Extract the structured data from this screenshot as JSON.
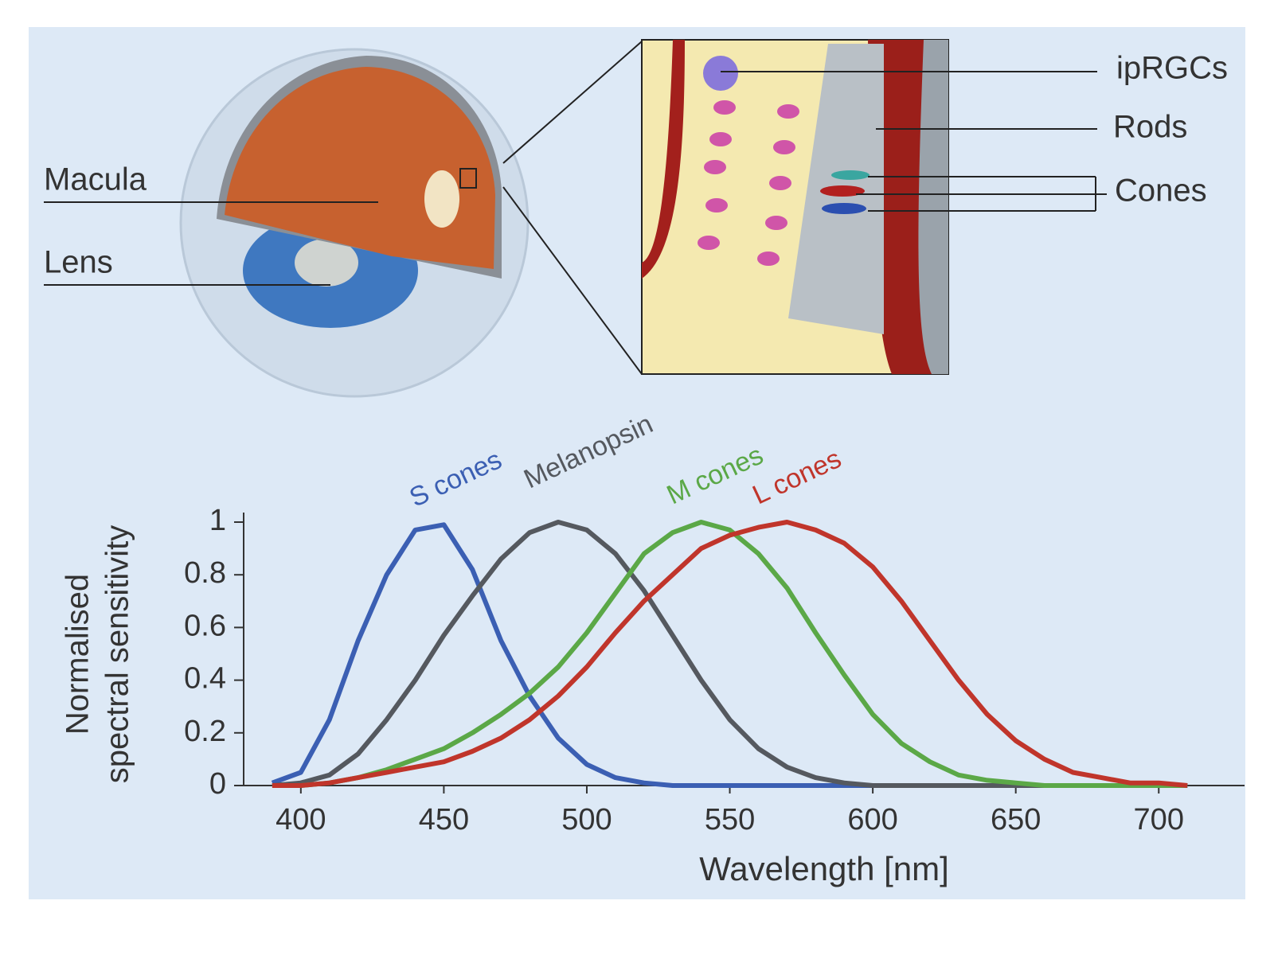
{
  "diagram": {
    "labels": [
      "Macula",
      "Lens",
      "ipRGCs",
      "Rods",
      "Cones"
    ]
  },
  "chart_data": {
    "type": "line",
    "ylabel": [
      "Normalised",
      "spectral sensitivity"
    ],
    "xlabel": "Wavelength [nm]",
    "x": [
      390,
      400,
      410,
      420,
      430,
      440,
      450,
      460,
      470,
      480,
      490,
      500,
      510,
      520,
      530,
      540,
      550,
      560,
      570,
      580,
      590,
      600,
      610,
      620,
      630,
      640,
      650,
      660,
      670,
      680,
      690,
      700,
      710
    ],
    "series": [
      {
        "name": "S cones",
        "color": "#3b5fb3",
        "values": [
          0.01,
          0.05,
          0.25,
          0.55,
          0.8,
          0.97,
          0.99,
          0.82,
          0.55,
          0.34,
          0.18,
          0.08,
          0.03,
          0.01,
          0,
          0,
          0,
          0,
          0,
          0,
          0,
          0,
          0,
          0,
          0,
          0,
          0,
          0,
          0,
          0,
          0,
          0,
          0
        ]
      },
      {
        "name": "Melanopsin",
        "color": "#55595f",
        "values": [
          0,
          0.01,
          0.04,
          0.12,
          0.25,
          0.4,
          0.57,
          0.72,
          0.86,
          0.96,
          1.0,
          0.97,
          0.88,
          0.74,
          0.57,
          0.4,
          0.25,
          0.14,
          0.07,
          0.03,
          0.01,
          0,
          0,
          0,
          0,
          0,
          0,
          0,
          0,
          0,
          0,
          0,
          0
        ]
      },
      {
        "name": "M cones",
        "color": "#5ba847",
        "values": [
          0,
          0,
          0.01,
          0.03,
          0.06,
          0.1,
          0.14,
          0.2,
          0.27,
          0.35,
          0.45,
          0.58,
          0.73,
          0.88,
          0.96,
          1.0,
          0.97,
          0.88,
          0.75,
          0.58,
          0.42,
          0.27,
          0.16,
          0.09,
          0.04,
          0.02,
          0.01,
          0,
          0,
          0,
          0,
          0,
          0
        ]
      },
      {
        "name": "L cones",
        "color": "#c0352b",
        "values": [
          0,
          0,
          0.01,
          0.03,
          0.05,
          0.07,
          0.09,
          0.13,
          0.18,
          0.25,
          0.34,
          0.45,
          0.58,
          0.7,
          0.8,
          0.9,
          0.95,
          0.98,
          1.0,
          0.97,
          0.92,
          0.83,
          0.7,
          0.55,
          0.4,
          0.27,
          0.17,
          0.1,
          0.05,
          0.03,
          0.01,
          0.01,
          0
        ]
      }
    ],
    "xlim": [
      380,
      730
    ],
    "xticks": [
      400,
      450,
      500,
      550,
      600,
      650,
      700
    ],
    "ylim": [
      0,
      1
    ],
    "yticks": [
      0,
      0.2,
      0.4,
      0.6,
      0.8,
      1
    ]
  }
}
